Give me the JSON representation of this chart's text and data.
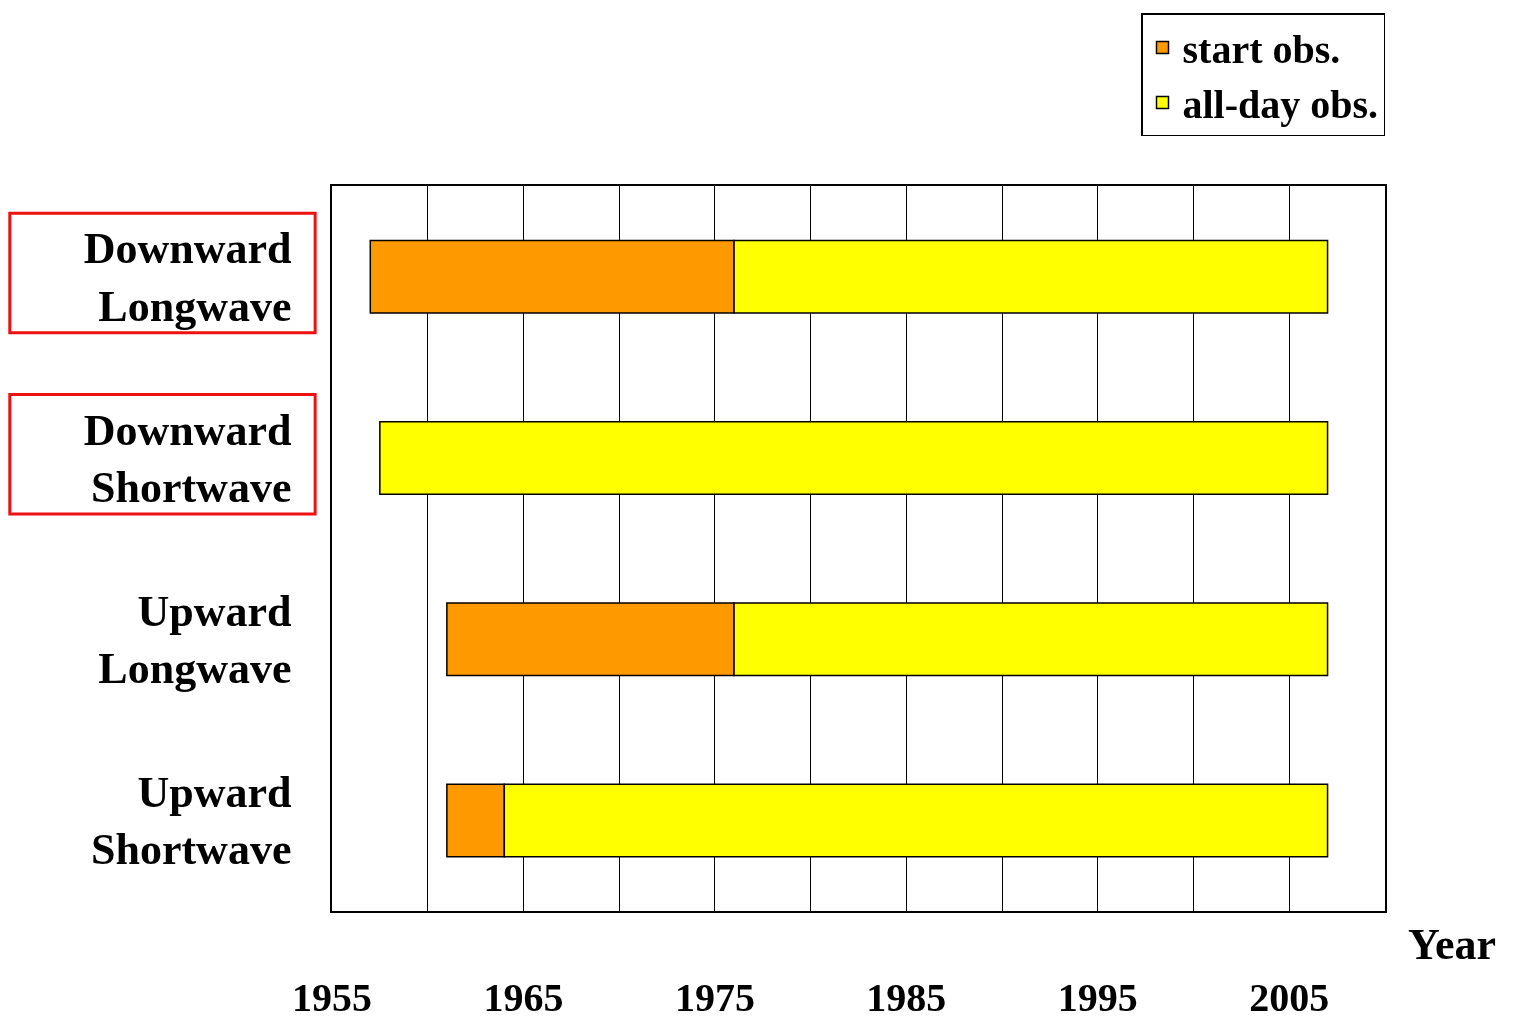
{
  "chart_data": {
    "type": "bar",
    "orientation": "horizontal",
    "xlabel": "Year",
    "categories": [
      "Downward\nLongwave",
      "Downward\nShortwave",
      "Upward\nLongwave",
      "Upward\nShortwave"
    ],
    "series": [
      {
        "name": "start obs.",
        "color": "#ff9900",
        "base": [
          1957,
          null,
          1961,
          1961
        ],
        "values": [
          19,
          null,
          15,
          3
        ]
      },
      {
        "name": "all-day obs.",
        "color": "#ffff00",
        "base": [
          1976,
          1957.5,
          1976,
          1964
        ],
        "values": [
          31,
          49.5,
          31,
          43
        ]
      }
    ],
    "xlim": [
      1955,
      2010
    ],
    "xticks": [
      1955,
      {
        "value": 1960,
        "label": null
      },
      1965,
      {
        "value": 1970,
        "label": null
      },
      1975,
      {
        "value": 1980,
        "label": null
      },
      1985,
      {
        "value": 1990,
        "label": null
      },
      1995,
      {
        "value": 2000,
        "label": null
      },
      2005
    ],
    "grid": "x",
    "legend": "top right"
  }
}
